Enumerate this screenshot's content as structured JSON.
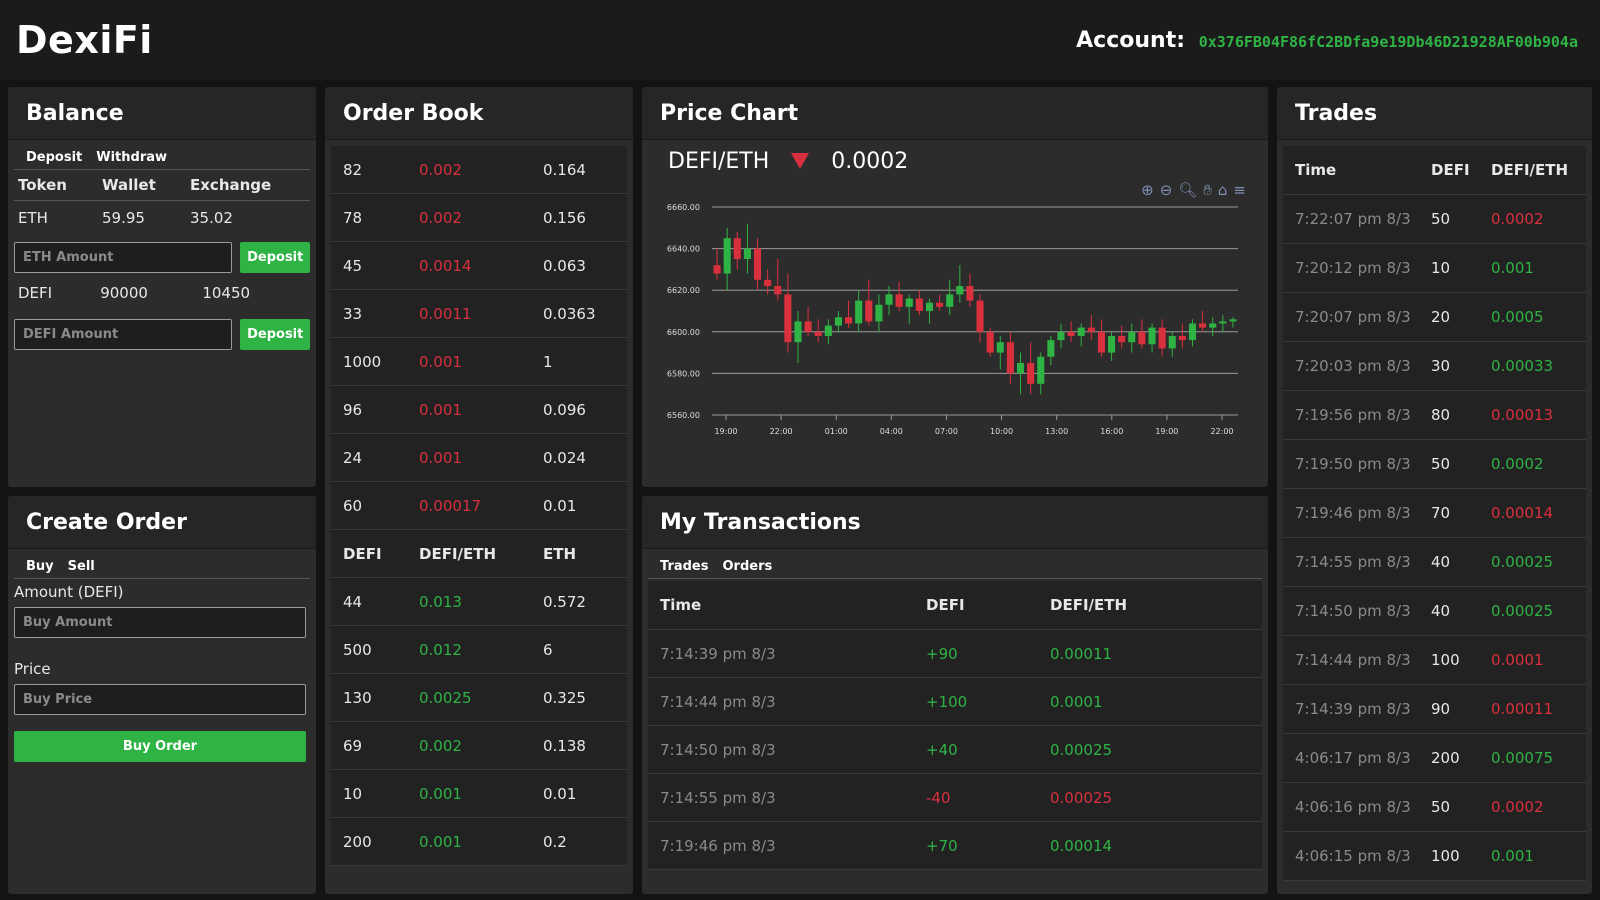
{
  "app": {
    "name": "DexiFi"
  },
  "account": {
    "label": "Account:",
    "address": "0x376FB04F86fC2BDfa9e19Db46D21928AF00b904a"
  },
  "balance": {
    "title": "Balance",
    "tabs": [
      "Deposit",
      "Withdraw"
    ],
    "headers": [
      "Token",
      "Wallet",
      "Exchange"
    ],
    "eth": {
      "token": "ETH",
      "wallet": "59.95",
      "exchange": "35.02",
      "placeholder": "ETH Amount",
      "button": "Deposit"
    },
    "defi": {
      "token": "DEFI",
      "wallet": "90000",
      "exchange": "10450",
      "placeholder": "DEFI Amount",
      "button": "Deposit"
    }
  },
  "create_order": {
    "title": "Create Order",
    "tabs": [
      "Buy",
      "Sell"
    ],
    "amount_label": "Amount (DEFI)",
    "amount_placeholder": "Buy Amount",
    "price_label": "Price",
    "price_placeholder": "Buy Price",
    "button": "Buy Order"
  },
  "order_book": {
    "title": "Order Book",
    "headers": [
      "DEFI",
      "DEFI/ETH",
      "ETH"
    ],
    "sells": [
      [
        "82",
        "0.002",
        "0.164"
      ],
      [
        "78",
        "0.002",
        "0.156"
      ],
      [
        "45",
        "0.0014",
        "0.063"
      ],
      [
        "33",
        "0.0011",
        "0.0363"
      ],
      [
        "1000",
        "0.001",
        "1"
      ],
      [
        "96",
        "0.001",
        "0.096"
      ],
      [
        "24",
        "0.001",
        "0.024"
      ],
      [
        "60",
        "0.00017",
        "0.01"
      ]
    ],
    "buys": [
      [
        "44",
        "0.013",
        "0.572"
      ],
      [
        "500",
        "0.012",
        "6"
      ],
      [
        "130",
        "0.0025",
        "0.325"
      ],
      [
        "69",
        "0.002",
        "0.138"
      ],
      [
        "10",
        "0.001",
        "0.01"
      ],
      [
        "200",
        "0.001",
        "0.2"
      ]
    ]
  },
  "price_chart": {
    "title": "Price Chart",
    "pair": "DEFI/ETH",
    "price": "0.0002",
    "direction": "down",
    "colors": {
      "up": "#2fb344",
      "down": "#d9303d"
    }
  },
  "chart_data": {
    "type": "candlestick",
    "ylim": [
      6560,
      6660
    ],
    "y_ticks": [
      "6660.00",
      "6640.00",
      "6620.00",
      "6600.00",
      "6580.00",
      "6560.00"
    ],
    "x_ticks": [
      "19:00",
      "22:00",
      "01:00",
      "04:00",
      "07:00",
      "10:00",
      "13:00",
      "16:00",
      "19:00",
      "22:00"
    ],
    "candles": [
      [
        6632,
        6640,
        6625,
        6628
      ],
      [
        6628,
        6650,
        6620,
        6645
      ],
      [
        6645,
        6648,
        6630,
        6635
      ],
      [
        6635,
        6652,
        6628,
        6640
      ],
      [
        6640,
        6645,
        6620,
        6625
      ],
      [
        6625,
        6630,
        6618,
        6622
      ],
      [
        6622,
        6635,
        6615,
        6618
      ],
      [
        6618,
        6628,
        6590,
        6595
      ],
      [
        6595,
        6610,
        6585,
        6605
      ],
      [
        6605,
        6612,
        6598,
        6600
      ],
      [
        6600,
        6606,
        6595,
        6598
      ],
      [
        6598,
        6606,
        6594,
        6603
      ],
      [
        6603,
        6610,
        6600,
        6607
      ],
      [
        6607,
        6615,
        6602,
        6604
      ],
      [
        6604,
        6620,
        6600,
        6615
      ],
      [
        6615,
        6625,
        6603,
        6605
      ],
      [
        6605,
        6618,
        6600,
        6613
      ],
      [
        6613,
        6622,
        6608,
        6618
      ],
      [
        6618,
        6624,
        6610,
        6612
      ],
      [
        6612,
        6618,
        6604,
        6616
      ],
      [
        6616,
        6620,
        6608,
        6610
      ],
      [
        6610,
        6616,
        6604,
        6614
      ],
      [
        6614,
        6618,
        6610,
        6612
      ],
      [
        6612,
        6625,
        6608,
        6618
      ],
      [
        6618,
        6632,
        6614,
        6622
      ],
      [
        6622,
        6628,
        6612,
        6615
      ],
      [
        6615,
        6618,
        6595,
        6600
      ],
      [
        6600,
        6602,
        6588,
        6590
      ],
      [
        6590,
        6598,
        6582,
        6595
      ],
      [
        6595,
        6600,
        6575,
        6580
      ],
      [
        6580,
        6590,
        6570,
        6585
      ],
      [
        6585,
        6595,
        6570,
        6575
      ],
      [
        6575,
        6590,
        6570,
        6588
      ],
      [
        6588,
        6598,
        6584,
        6596
      ],
      [
        6596,
        6604,
        6592,
        6600
      ],
      [
        6600,
        6605,
        6595,
        6598
      ],
      [
        6598,
        6604,
        6593,
        6602
      ],
      [
        6602,
        6608,
        6596,
        6600
      ],
      [
        6600,
        6606,
        6588,
        6590
      ],
      [
        6590,
        6600,
        6586,
        6598
      ],
      [
        6598,
        6603,
        6592,
        6595
      ],
      [
        6595,
        6604,
        6590,
        6600
      ],
      [
        6600,
        6606,
        6592,
        6594
      ],
      [
        6594,
        6604,
        6590,
        6602
      ],
      [
        6602,
        6606,
        6588,
        6592
      ],
      [
        6592,
        6600,
        6588,
        6598
      ],
      [
        6598,
        6604,
        6592,
        6596
      ],
      [
        6596,
        6606,
        6593,
        6604
      ],
      [
        6604,
        6610,
        6600,
        6602
      ],
      [
        6602,
        6607,
        6598,
        6604
      ],
      [
        6604,
        6608,
        6600,
        6605
      ],
      [
        6605,
        6607,
        6602,
        6606
      ]
    ]
  },
  "my_transactions": {
    "title": "My Transactions",
    "tabs": [
      "Trades",
      "Orders"
    ],
    "headers": [
      "Time",
      "DEFI",
      "DEFI/ETH"
    ],
    "rows": [
      {
        "time": "7:14:39 pm 8/3",
        "defi": "+90",
        "price": "0.00011",
        "side": "buy"
      },
      {
        "time": "7:14:44 pm 8/3",
        "defi": "+100",
        "price": "0.0001",
        "side": "buy"
      },
      {
        "time": "7:14:50 pm 8/3",
        "defi": "+40",
        "price": "0.00025",
        "side": "buy"
      },
      {
        "time": "7:14:55 pm 8/3",
        "defi": "-40",
        "price": "0.00025",
        "side": "sell"
      },
      {
        "time": "7:19:46 pm 8/3",
        "defi": "+70",
        "price": "0.00014",
        "side": "buy"
      }
    ]
  },
  "trades": {
    "title": "Trades",
    "headers": [
      "Time",
      "DEFI",
      "DEFI/ETH"
    ],
    "rows": [
      {
        "time": "7:22:07 pm 8/3",
        "defi": "50",
        "price": "0.0002",
        "side": "sell"
      },
      {
        "time": "7:20:12 pm 8/3",
        "defi": "10",
        "price": "0.001",
        "side": "buy"
      },
      {
        "time": "7:20:07 pm 8/3",
        "defi": "20",
        "price": "0.0005",
        "side": "buy"
      },
      {
        "time": "7:20:03 pm 8/3",
        "defi": "30",
        "price": "0.00033",
        "side": "buy"
      },
      {
        "time": "7:19:56 pm 8/3",
        "defi": "80",
        "price": "0.00013",
        "side": "sell"
      },
      {
        "time": "7:19:50 pm 8/3",
        "defi": "50",
        "price": "0.0002",
        "side": "buy"
      },
      {
        "time": "7:19:46 pm 8/3",
        "defi": "70",
        "price": "0.00014",
        "side": "sell"
      },
      {
        "time": "7:14:55 pm 8/3",
        "defi": "40",
        "price": "0.00025",
        "side": "buy"
      },
      {
        "time": "7:14:50 pm 8/3",
        "defi": "40",
        "price": "0.00025",
        "side": "buy"
      },
      {
        "time": "7:14:44 pm 8/3",
        "defi": "100",
        "price": "0.0001",
        "side": "sell"
      },
      {
        "time": "7:14:39 pm 8/3",
        "defi": "90",
        "price": "0.00011",
        "side": "sell"
      },
      {
        "time": "4:06:17 pm 8/3",
        "defi": "200",
        "price": "0.00075",
        "side": "buy"
      },
      {
        "time": "4:06:16 pm 8/3",
        "defi": "50",
        "price": "0.0002",
        "side": "sell"
      },
      {
        "time": "4:06:15 pm 8/3",
        "defi": "100",
        "price": "0.001",
        "side": "buy"
      }
    ]
  }
}
